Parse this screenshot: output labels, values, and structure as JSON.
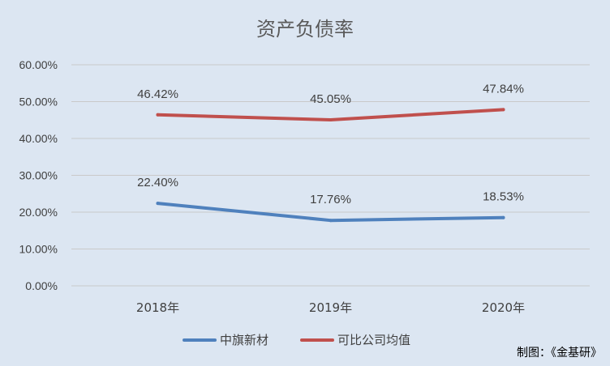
{
  "chart_data": {
    "type": "line",
    "title": "资产负债率",
    "categories": [
      "2018年",
      "2019年",
      "2020年"
    ],
    "y_ticks": [
      "0.00%",
      "10.00%",
      "20.00%",
      "30.00%",
      "40.00%",
      "50.00%",
      "60.00%"
    ],
    "ylim": [
      0,
      60
    ],
    "grid": true,
    "legend_position": "bottom",
    "series": [
      {
        "name": "中旗新材",
        "values": [
          22.4,
          17.76,
          18.53
        ],
        "labels": [
          "22.40%",
          "17.76%",
          "18.53%"
        ],
        "color": "#4f81bd"
      },
      {
        "name": "可比公司均值",
        "values": [
          46.42,
          45.05,
          47.84
        ],
        "labels": [
          "46.42%",
          "45.05%",
          "47.84%"
        ],
        "color": "#c0504d"
      }
    ],
    "credit": "制图：《金基研》"
  }
}
